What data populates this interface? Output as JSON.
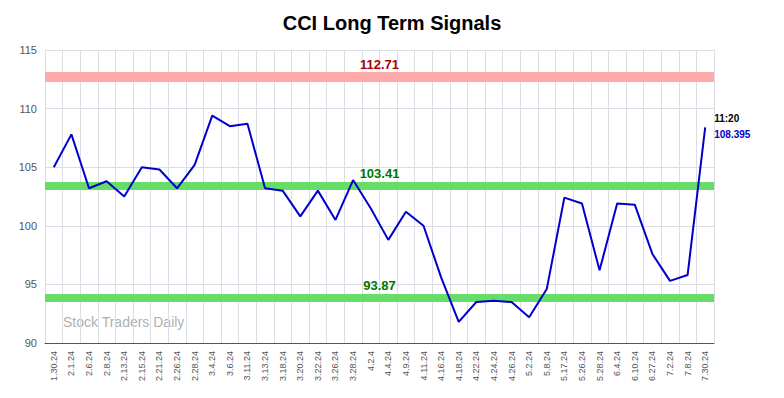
{
  "chart_data": {
    "type": "line",
    "title": "CCI Long Term Signals",
    "categories": [
      "1.30.24",
      "2.1.24",
      "2.6.24",
      "2.8.24",
      "2.13.24",
      "2.15.24",
      "2.21.24",
      "2.26.24",
      "2.28.24",
      "3.4.24",
      "3.6.24",
      "3.11.24",
      "3.13.24",
      "3.18.24",
      "3.20.24",
      "3.22.24",
      "3.26.24",
      "3.28.24",
      "4.2.4",
      "4.4.24",
      "4.9.24",
      "4.11.24",
      "4.16.24",
      "4.18.24",
      "4.22.24",
      "4.24.24",
      "4.26.24",
      "5.2.24",
      "5.8.24",
      "5.17.24",
      "5.26.24",
      "5.28.24",
      "6.4.24",
      "6.10.24",
      "6.27.24",
      "7.2.24",
      "7.8.24",
      "7.30.24"
    ],
    "values": [
      105.0,
      107.8,
      103.2,
      103.8,
      102.5,
      105.0,
      104.8,
      103.2,
      105.2,
      109.4,
      108.5,
      108.7,
      103.2,
      103.0,
      100.8,
      103.0,
      100.5,
      103.9,
      101.5,
      98.8,
      101.2,
      100.0,
      95.6,
      91.8,
      93.5,
      93.6,
      93.5,
      92.2,
      94.6,
      102.4,
      101.9,
      96.2,
      101.9,
      101.8,
      97.6,
      95.3,
      95.8,
      108.4
    ],
    "color": "#0000cc",
    "ylim": [
      90,
      115
    ],
    "yticks": [
      90,
      95,
      100,
      105,
      110,
      115
    ],
    "grid": true,
    "hlines": [
      {
        "value": 112.71,
        "color": "#ffaaaa",
        "label": "112.71",
        "label_color": "#aa0000"
      },
      {
        "value": 103.41,
        "color": "#66dd66",
        "label": "103.41",
        "label_color": "#007700"
      },
      {
        "value": 93.87,
        "color": "#66dd66",
        "label": "93.87",
        "label_color": "#007700"
      }
    ],
    "last_point_labels": [
      {
        "text": "11:20",
        "color": "#000000"
      },
      {
        "text": "108.395",
        "color": "#0000cc"
      }
    ],
    "watermark": {
      "text": "Stock Traders Daily",
      "color": "#b0b0b0"
    }
  }
}
